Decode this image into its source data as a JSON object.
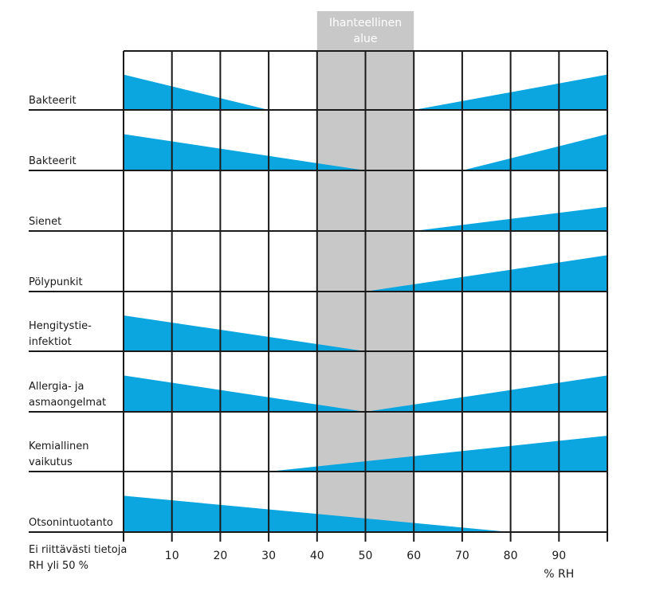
{
  "chart_data": {
    "type": "area",
    "title": "",
    "xlabel": "% RH",
    "xlim": [
      0,
      100
    ],
    "ticks": [
      10,
      20,
      30,
      40,
      50,
      60,
      70,
      80,
      90
    ],
    "ideal_zone": {
      "label_lines": [
        "Ihanteellinen",
        "alue"
      ],
      "range": [
        40,
        60
      ],
      "color": "#c8c8c9"
    },
    "fill_color": "#0ba5e0",
    "footnote_lines": [
      "Ei riittävästi tietoja",
      "RH yli 50 %"
    ],
    "rows": [
      {
        "label_lines": [
          "Bakteerit"
        ],
        "left": {
          "height": 0.6,
          "end": 30
        },
        "right": {
          "start": 60,
          "height": 0.6
        }
      },
      {
        "label_lines": [
          "Bakteerit"
        ],
        "left": {
          "height": 0.6,
          "end": 50
        },
        "right": {
          "start": 70,
          "height": 0.6
        }
      },
      {
        "label_lines": [
          "Sienet"
        ],
        "left": null,
        "right": {
          "start": 60,
          "height": 0.4
        }
      },
      {
        "label_lines": [
          "Pölypunkit"
        ],
        "left": null,
        "right": {
          "start": 50,
          "height": 0.6
        }
      },
      {
        "label_lines": [
          "Hengitystie-",
          "infektiot"
        ],
        "left": {
          "height": 0.6,
          "end": 50
        },
        "right": null
      },
      {
        "label_lines": [
          "Allergia- ja",
          "asmaongelmat"
        ],
        "left": {
          "height": 0.6,
          "end": 50
        },
        "right": {
          "start": 50,
          "height": 0.6
        }
      },
      {
        "label_lines": [
          "Kemiallinen",
          "vaikutus"
        ],
        "left": null,
        "right": {
          "start": 30,
          "height": 0.6
        }
      },
      {
        "label_lines": [
          "Otsonintuotanto"
        ],
        "left": {
          "height": 0.6,
          "end": 80
        },
        "right": null
      }
    ]
  }
}
